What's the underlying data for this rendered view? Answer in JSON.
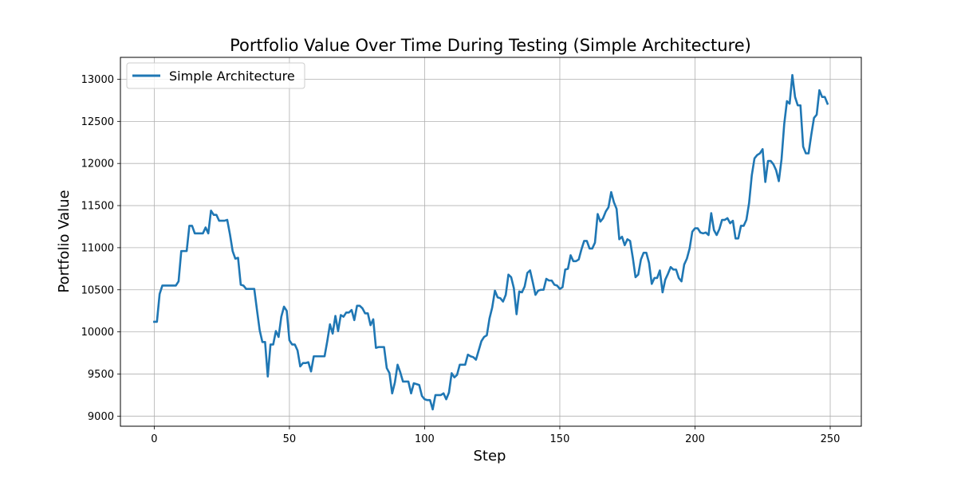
{
  "chart_data": {
    "type": "line",
    "title": "Portfolio Value Over Time During Testing (Simple Architecture)",
    "xlabel": "Step",
    "ylabel": "Portfolio Value",
    "xlim": [
      -12.5,
      261.5
    ],
    "ylim": [
      8880,
      13260
    ],
    "xticks": [
      0,
      50,
      100,
      150,
      200,
      250
    ],
    "yticks": [
      9000,
      9500,
      10000,
      10500,
      11000,
      11500,
      12000,
      12500,
      13000
    ],
    "grid": true,
    "legend_position": "top-left",
    "series": [
      {
        "name": "Simple Architecture",
        "color": "#1f77b4",
        "values": [
          10120,
          10120,
          10450,
          10550,
          10550,
          10550,
          10550,
          10550,
          10550,
          10600,
          10960,
          10960,
          10960,
          11260,
          11260,
          11170,
          11170,
          11170,
          11170,
          11240,
          11170,
          11440,
          11390,
          11390,
          11320,
          11320,
          11320,
          11330,
          11160,
          10960,
          10870,
          10880,
          10560,
          10550,
          10510,
          10510,
          10510,
          10510,
          10260,
          10020,
          9880,
          9880,
          9470,
          9850,
          9850,
          10010,
          9940,
          10180,
          10300,
          10250,
          9900,
          9850,
          9850,
          9780,
          9590,
          9630,
          9630,
          9640,
          9530,
          9710,
          9710,
          9710,
          9710,
          9710,
          9890,
          10090,
          9980,
          10190,
          10010,
          10200,
          10180,
          10230,
          10230,
          10260,
          10140,
          10310,
          10310,
          10280,
          10220,
          10220,
          10080,
          10150,
          9810,
          9820,
          9820,
          9820,
          9570,
          9510,
          9270,
          9400,
          9610,
          9520,
          9410,
          9410,
          9410,
          9270,
          9390,
          9380,
          9370,
          9240,
          9200,
          9190,
          9190,
          9080,
          9250,
          9250,
          9250,
          9270,
          9200,
          9280,
          9510,
          9460,
          9490,
          9610,
          9610,
          9610,
          9730,
          9710,
          9700,
          9670,
          9780,
          9890,
          9940,
          9960,
          10160,
          10290,
          10490,
          10410,
          10400,
          10360,
          10440,
          10680,
          10650,
          10520,
          10210,
          10480,
          10470,
          10540,
          10700,
          10730,
          10590,
          10440,
          10490,
          10500,
          10500,
          10630,
          10610,
          10610,
          10560,
          10550,
          10510,
          10530,
          10740,
          10750,
          10910,
          10840,
          10840,
          10860,
          10980,
          11080,
          11080,
          10990,
          10990,
          11060,
          11400,
          11310,
          11350,
          11430,
          11480,
          11660,
          11540,
          11460,
          11100,
          11130,
          11030,
          11100,
          11080,
          10880,
          10650,
          10680,
          10860,
          10940,
          10940,
          10820,
          10570,
          10640,
          10640,
          10730,
          10470,
          10620,
          10690,
          10770,
          10740,
          10740,
          10640,
          10600,
          10800,
          10870,
          10990,
          11190,
          11230,
          11230,
          11180,
          11170,
          11180,
          11150,
          11410,
          11210,
          11150,
          11220,
          11330,
          11330,
          11350,
          11290,
          11320,
          11110,
          11110,
          11260,
          11260,
          11330,
          11530,
          11860,
          12060,
          12100,
          12120,
          12170,
          11780,
          12030,
          12030,
          11990,
          11920,
          11790,
          12050,
          12470,
          12740,
          12710,
          13050,
          12790,
          12690,
          12690,
          12200,
          12120,
          12120,
          12340,
          12540,
          12580,
          12870,
          12790,
          12790,
          12710
        ]
      }
    ]
  }
}
